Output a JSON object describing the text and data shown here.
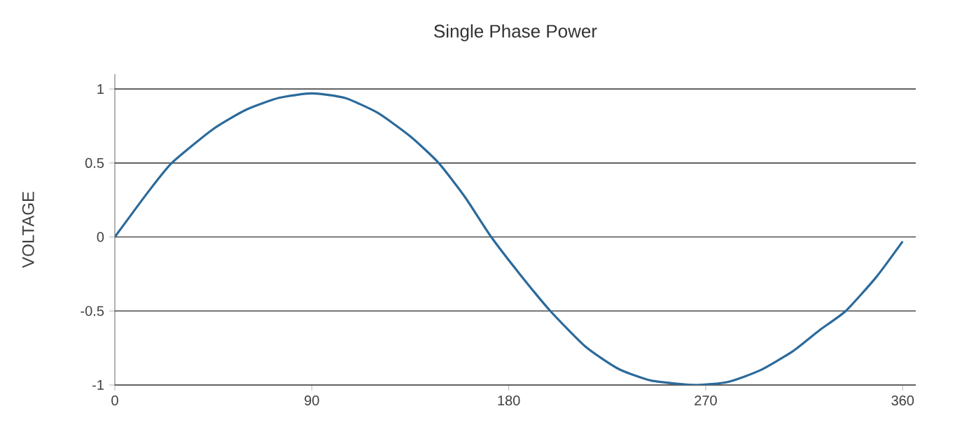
{
  "chart_data": {
    "type": "line",
    "title": "Single Phase Power",
    "ylabel": "VOLTAGE",
    "x": [
      0,
      15,
      26,
      45,
      60,
      75,
      90,
      105,
      120,
      135,
      148,
      160,
      172,
      185,
      199,
      215,
      230,
      245,
      265,
      280,
      295,
      310,
      322,
      334,
      348,
      360
    ],
    "series": [
      {
        "color": "#2b6a9b",
        "values": [
          0,
          0.3,
          0.5,
          0.73,
          0.86,
          0.94,
          0.97,
          0.94,
          0.84,
          0.68,
          0.5,
          0.27,
          0,
          -0.25,
          -0.5,
          -0.74,
          -0.89,
          -0.97,
          -1.0,
          -0.98,
          -0.9,
          -0.77,
          -0.63,
          -0.5,
          -0.27,
          -0.03
        ]
      }
    ],
    "xlim": [
      0,
      366
    ],
    "ylim": [
      -1,
      1.1
    ],
    "xticks": [
      0,
      90,
      180,
      270,
      360
    ],
    "yticks": [
      -1,
      -0.5,
      0,
      0.5,
      1
    ],
    "grid": "y",
    "marker": "none",
    "line_style": "solid"
  }
}
